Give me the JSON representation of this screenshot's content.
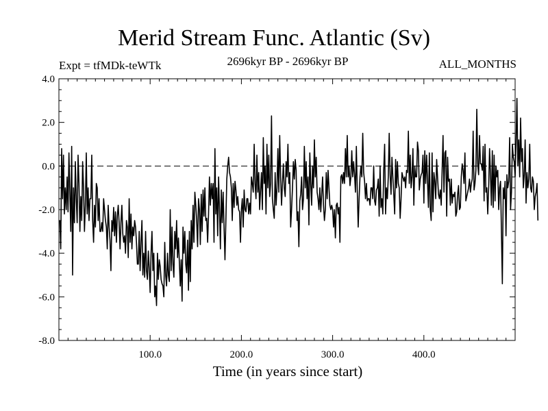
{
  "chart_data": {
    "type": "line",
    "title": "Merid Stream Func. Atlantic (Sv)",
    "subtitle_left": "Expt = tfMDk-teWTk",
    "subtitle_center": "2696kyr BP - 2696kyr BP",
    "subtitle_right": "ALL_MONTHS",
    "xlabel": "Time (in years since start)",
    "ylabel": "",
    "xlim": [
      0,
      500
    ],
    "ylim": [
      -8,
      4
    ],
    "xticks": [
      100,
      200,
      300,
      400
    ],
    "xtick_labels": [
      "100.0",
      "200.0",
      "300.0",
      "400.0"
    ],
    "yticks": [
      -8,
      -6,
      -4,
      -2,
      0,
      2,
      4
    ],
    "ytick_labels": [
      "-8.0",
      "-6.0",
      "-4.0",
      "-2.0",
      "0.0",
      "2.0",
      "4.0"
    ],
    "zero_line": true,
    "series": [
      {
        "name": "Merid Stream Func.",
        "x_start": 1,
        "x_step": 1,
        "values": [
          -2.5,
          -3.8,
          0.8,
          -1.5,
          0.5,
          -2.2,
          -1.0,
          -2.0,
          -0.5,
          -2.1,
          0.6,
          -1.2,
          -3.0,
          0.9,
          -5.0,
          -1.0,
          -2.6,
          0.2,
          -1.5,
          -2.6,
          0.5,
          -0.8,
          -3.0,
          -1.4,
          -2.5,
          0.2,
          -1.0,
          -3.0,
          -1.8,
          0.6,
          -2.2,
          -1.0,
          -2.5,
          -1.5,
          -1.5,
          0.5,
          -2.5,
          -3.5,
          -1.8,
          -2.8,
          -0.8,
          -1.0,
          -2.5,
          -1.5,
          -3.0,
          -3.0,
          -2.6,
          -3.0,
          -1.5,
          -2.0,
          -2.5,
          -2.8,
          -3.8,
          -1.8,
          -2.8,
          -3.4,
          -4.8,
          -2.5,
          -3.0,
          -1.9,
          -3.2,
          -2.1,
          -3.5,
          -2.3,
          -1.8,
          -2.6,
          -3.8,
          -2.6,
          -1.8,
          -3.1,
          -3.5,
          -3.2,
          -4.0,
          -2.5,
          -2.8,
          -4.2,
          -1.5,
          -3.5,
          -2.2,
          -3.8,
          -2.8,
          -3.2,
          -2.5,
          -2.8,
          -3.5,
          -4.5,
          -4.5,
          -3.0,
          -4.8,
          -3.5,
          -2.5,
          -5.0,
          -4.0,
          -5.1,
          -3.0,
          -4.8,
          -5.2,
          -3.9,
          -4.7,
          -5.8,
          -4.0,
          -3.0,
          -4.8,
          -4.0,
          -6.0,
          -5.5,
          -6.4,
          -4.0,
          -5.2,
          -4.3,
          -4.6,
          -5.2,
          -5.4,
          -5.5,
          -6.0,
          -3.5,
          -5.0,
          -5.5,
          -4.0,
          -5.0,
          -5.3,
          -2.0,
          -4.8,
          -2.8,
          -4.5,
          -5.1,
          -3.0,
          -3.8,
          -2.5,
          -4.2,
          -3.3,
          -4.4,
          -5.5,
          -4.3,
          -6.2,
          -2.8,
          -4.0,
          -3.0,
          -4.5,
          -4.9,
          -3.4,
          -5.7,
          -3.0,
          -5.3,
          -2.5,
          -3.8,
          -1.8,
          -3.5,
          -1.2,
          -1.8,
          -2.5,
          -3.7,
          -1.5,
          -2.0,
          -3.6,
          -1.3,
          -3.0,
          -1.1,
          -2.3,
          -1.0,
          -2.5,
          -2.4,
          -3.5,
          -2.2,
          -0.5,
          -1.8,
          -0.8,
          -1.5,
          -0.8,
          -3.5,
          0.8,
          -2.2,
          -1.0,
          -3.2,
          -0.5,
          -2.0,
          -3.8,
          -1.1,
          -2.6,
          -1.2,
          -2.8,
          -4.3,
          -2.5,
          -0.6,
          0.0,
          0.4,
          -0.3,
          -0.5,
          -1.0,
          -2.5,
          -0.8,
          -1.9,
          -0.7,
          -1.1,
          -1.8,
          -1.4,
          -2.0,
          -2.1,
          -3.5,
          -2.0,
          -1.5,
          -2.8,
          -1.1,
          -2.0,
          -2.1,
          -1.5,
          -1.5,
          -2.2,
          -1.7,
          -2.2,
          -0.5,
          -0.8,
          -1.2,
          1.0,
          -0.8,
          -1.5,
          0.5,
          -1.2,
          -0.3,
          -2.0,
          -1.1,
          -0.3,
          -2.0,
          1.3,
          -0.8,
          0.0,
          -2.2,
          1.0,
          -1.0,
          0.5,
          -1.4,
          -0.8,
          2.3,
          -1.5,
          -2.0,
          -2.4,
          -0.3,
          -1.8,
          -1.0,
          0.8,
          -1.2,
          1.4,
          -0.5,
          -1.8,
          -0.8,
          0.1,
          -1.0,
          -1.4,
          0.2,
          -0.5,
          1.0,
          -0.8,
          -0.3,
          -2.8,
          -2.0,
          -1.0,
          0.2,
          -0.6,
          0.3,
          -0.2,
          -2.5,
          -2.1,
          -3.7,
          -1.6,
          -1.3,
          -0.5,
          -2.0,
          -1.5,
          0.9,
          -1.0,
          0.2,
          -1.5,
          -0.5,
          -2.7,
          0.6,
          -0.8,
          -1.8,
          0.0,
          -1.0,
          1.2,
          -0.5,
          0.4,
          -1.2,
          -1.5,
          -2.0,
          -1.0,
          -2.1,
          -1.3,
          -0.5,
          -1.8,
          -2.5,
          -2.0,
          -0.3,
          -1.5,
          -0.2,
          -1.0,
          -1.8,
          -2.0,
          -1.8,
          -2.0,
          -2.8,
          -2.0,
          -3.3,
          -1.8,
          -1.7,
          -2.2,
          -1.9,
          -3.5,
          -0.5,
          -0.4,
          -0.8,
          -0.3,
          -0.8,
          0.8,
          -0.5,
          1.4,
          -0.5,
          0.0,
          -0.9,
          -0.5,
          0.7,
          -0.5,
          0.2,
          -0.4,
          -1.2,
          0.9,
          -1.1,
          -2.8,
          -1.5,
          -0.5,
          0.0,
          -0.5,
          1.5,
          -0.3,
          -0.7,
          -1.5,
          -0.8,
          -1.6,
          -1.5,
          -1.5,
          -1.8,
          -1.0,
          -1.0,
          -1.5,
          0.0,
          -1.6,
          -1.8,
          -1.1,
          -1.0,
          -0.6,
          -2.3,
          0.0,
          -1.9,
          -1.5,
          -2.2,
          -0.2,
          1.0,
          -2.2,
          -1.0,
          -1.5,
          -0.5,
          1.5,
          -0.4,
          -1.3,
          0.4,
          -0.5,
          -1.3,
          -2.2,
          0.3,
          -1.0,
          0.2,
          -0.8,
          -1.0,
          -2.4,
          -1.5,
          -0.3,
          -0.5,
          -0.7,
          -0.5,
          -1.0,
          -0.2,
          -0.3,
          1.6,
          -0.8,
          0.5,
          -1.0,
          -0.5,
          0.8,
          -1.8,
          0.0,
          -0.5,
          -0.5,
          1.1,
          0.7,
          -1.1,
          -0.6,
          -0.4,
          -0.3,
          0.5,
          -1.7,
          0.7,
          -0.8,
          0.5,
          -0.7,
          -1.9,
          0.6,
          -2.0,
          -2.5,
          0.6,
          -2.1,
          -0.3,
          -0.7,
          -1.5,
          0.3,
          -0.5,
          -1.3,
          -1.5,
          -1.1,
          -1.8,
          -0.2,
          1.4,
          -1.2,
          0.6,
          0.7,
          -2.3,
          0.4,
          -0.7,
          -0.6,
          -1.8,
          -0.6,
          -1.7,
          -1.3,
          -1.4,
          -1.2,
          -2.3,
          -2.1,
          -1.3,
          -0.9,
          -2.0,
          -1.9,
          -0.5,
          0.1,
          -0.2,
          -0.8,
          0.6,
          -1.6,
          -1.4,
          -1.2,
          -1.0,
          -0.6,
          -1.2,
          -0.8,
          -0.6,
          1.6,
          -1.1,
          -0.8,
          -0.2,
          2.6,
          0.1,
          -0.4,
          1.4,
          0.1,
          0.1,
          -0.2,
          0.9,
          -1.6,
          1.0,
          -1.2,
          -1.0,
          -2.2,
          -1.0,
          0.8,
          -0.4,
          -1.8,
          0.7,
          -1.9,
          0.5,
          -1.6,
          0.0,
          -0.5,
          -0.2,
          -2.0,
          -1.0,
          -0.7,
          -3.0,
          -5.4,
          -1.0,
          -1.5,
          -0.7,
          -3.2,
          -0.4,
          -1.0,
          -0.7,
          1.3,
          -2.0,
          -1.2,
          1.0,
          0.4,
          0.2,
          -0.5,
          1.0,
          3.1,
          0.0,
          1.2,
          -0.5,
          2.2,
          0.2,
          0.8,
          -1.0,
          -0.4,
          1.2,
          -1.7,
          -0.3,
          -1.0,
          -0.6,
          1.0,
          -1.0,
          -1.2,
          -0.5,
          -0.7,
          -2.0,
          -1.4,
          -1.2,
          -0.8,
          -2.5
        ]
      }
    ]
  }
}
